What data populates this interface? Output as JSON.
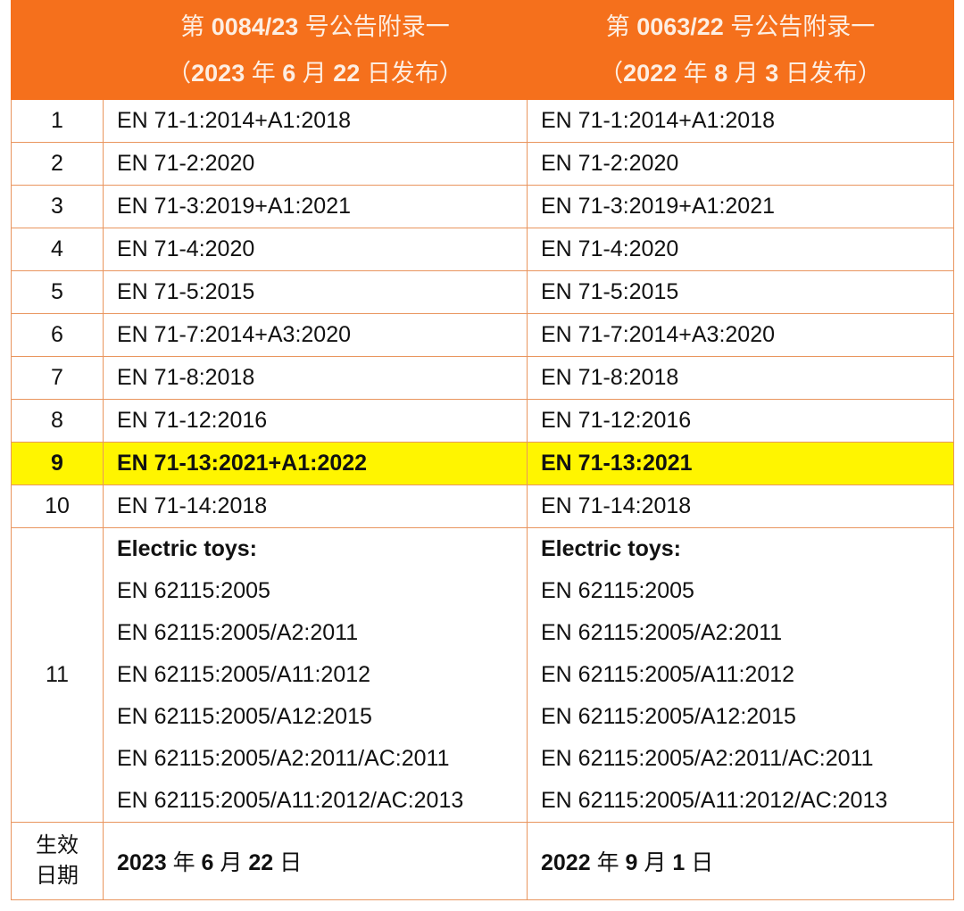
{
  "header": {
    "col1": {
      "line1": [
        "第 ",
        "0084/23",
        " 号公告附录一"
      ],
      "line2": [
        "（",
        "2023",
        " 年 ",
        "6",
        " 月 ",
        "22",
        " 日发布）"
      ]
    },
    "col2": {
      "line1": [
        "第 ",
        "0063/22",
        " 号公告附录一"
      ],
      "line2": [
        "（",
        "2022",
        " 年 ",
        "8",
        " 月 ",
        "3",
        " 日发布）"
      ]
    }
  },
  "rows": [
    {
      "no": "1",
      "a": "EN 71-1:2014+A1:2018",
      "b": "EN 71-1:2014+A1:2018"
    },
    {
      "no": "2",
      "a": "EN 71-2:2020",
      "b": "EN 71-2:2020"
    },
    {
      "no": "3",
      "a": "EN 71-3:2019+A1:2021",
      "b": "EN 71-3:2019+A1:2021"
    },
    {
      "no": "4",
      "a": "EN 71-4:2020",
      "b": "EN 71-4:2020"
    },
    {
      "no": "5",
      "a": "EN 71-5:2015",
      "b": "EN 71-5:2015"
    },
    {
      "no": "6",
      "a": "EN 71-7:2014+A3:2020",
      "b": "EN 71-7:2014+A3:2020"
    },
    {
      "no": "7",
      "a": "EN 71-8:2018",
      "b": "EN 71-8:2018"
    },
    {
      "no": "8",
      "a": "EN 71-12:2016",
      "b": "EN 71-12:2016"
    },
    {
      "no": "9",
      "a": "EN 71-13:2021+A1:2022",
      "b": "EN 71-13:2021",
      "highlight": "#fff500"
    },
    {
      "no": "10",
      "a": "EN 71-14:2018",
      "b": "EN 71-14:2018"
    }
  ],
  "row11": {
    "no": "11",
    "heading": "Electric toys:",
    "a": [
      "EN 62115:2005",
      "EN 62115:2005/A2:2011",
      "EN 62115:2005/A11:2012",
      "EN 62115:2005/A12:2015",
      "EN 62115:2005/A2:2011/AC:2011",
      "EN 62115:2005/A11:2012/AC:2013"
    ],
    "b": [
      "EN 62115:2005",
      "EN 62115:2005/A2:2011",
      "EN 62115:2005/A11:2012",
      "EN 62115:2005/A12:2015",
      "EN 62115:2005/A2:2011/AC:2011",
      "EN 62115:2005/A11:2012/AC:2013"
    ]
  },
  "effective": {
    "label_line1": "生效",
    "label_line2": "日期",
    "a": [
      "2023",
      " 年 ",
      "6",
      " 月 ",
      "22",
      " 日"
    ],
    "b": [
      "2022",
      " 年 ",
      "9",
      " 月 ",
      "1",
      " 日"
    ]
  },
  "colors": {
    "header_bg": "#f5701c",
    "border": "#e9955e",
    "highlight": "#fff500"
  }
}
